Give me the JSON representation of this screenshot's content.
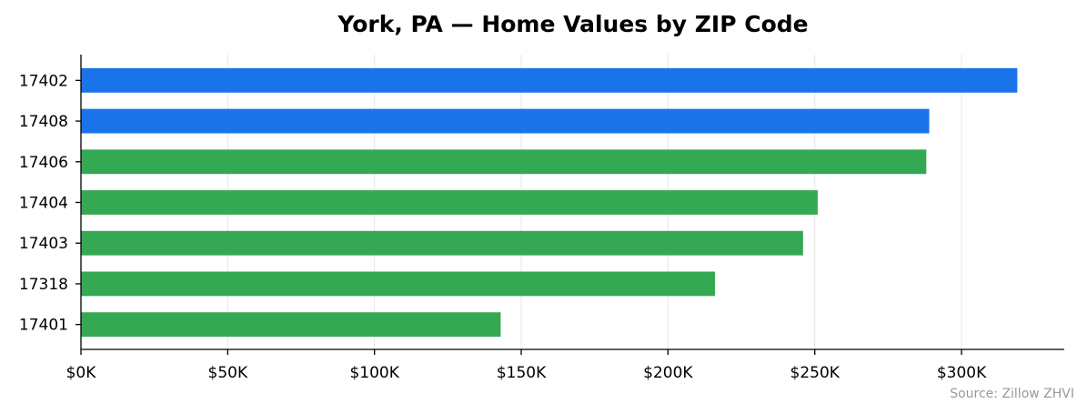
{
  "chart_data": {
    "type": "bar",
    "orientation": "horizontal",
    "title": "York, PA — Home Values by ZIP Code",
    "xlabel": "",
    "ylabel": "",
    "categories": [
      "17402",
      "17408",
      "17406",
      "17404",
      "17403",
      "17318",
      "17401"
    ],
    "values": [
      319000,
      289000,
      288000,
      251000,
      246000,
      216000,
      143000
    ],
    "bar_colors": [
      "#1a73e8",
      "#1a73e8",
      "#34a853",
      "#34a853",
      "#34a853",
      "#34a853",
      "#34a853"
    ],
    "xlim": [
      0,
      335000
    ],
    "xticks": [
      0,
      50000,
      100000,
      150000,
      200000,
      250000,
      300000
    ],
    "xtick_labels": [
      "$0K",
      "$50K",
      "$100K",
      "$150K",
      "$200K",
      "$250K",
      "$300K"
    ],
    "grid": "vertical",
    "source": "Source: Zillow ZHVI"
  }
}
